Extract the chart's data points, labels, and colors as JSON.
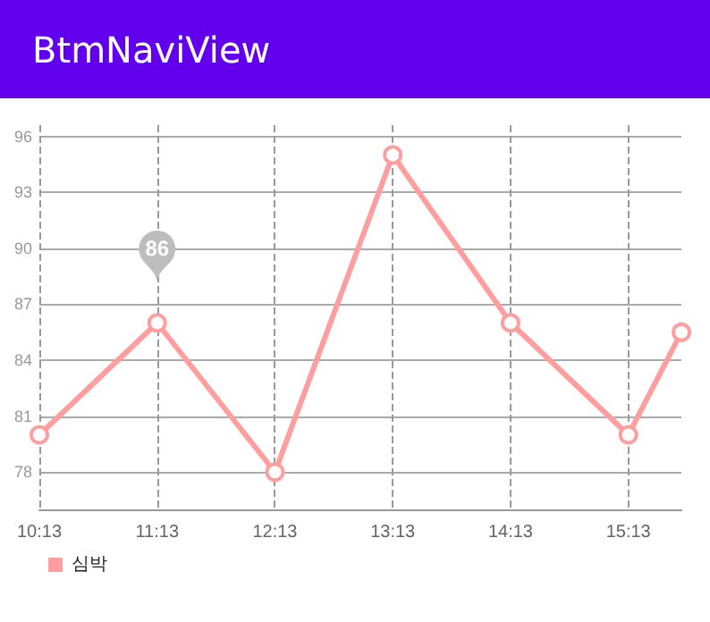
{
  "chart_data": {
    "type": "line",
    "title": "BtmNaviView",
    "x": [
      10.2167,
      11.2167,
      12.2167,
      13.2167,
      14.2167,
      15.2167,
      15.667
    ],
    "series": [
      {
        "name": "심박",
        "color": "#ff9e9e",
        "values": [
          80,
          86,
          78,
          95,
          86,
          80,
          85.5
        ]
      }
    ],
    "xlim": [
      10.2167,
      15.667
    ],
    "xticks": [
      {
        "value": 10.2167,
        "label": "10:13"
      },
      {
        "value": 11.2167,
        "label": "11:13"
      },
      {
        "value": 12.2167,
        "label": "12:13"
      },
      {
        "value": 13.2167,
        "label": "13:13"
      },
      {
        "value": 14.2167,
        "label": "14:13"
      },
      {
        "value": 15.2167,
        "label": "15:13"
      }
    ],
    "ylim": [
      76,
      96.6
    ],
    "yticks": [
      78,
      81,
      84,
      87,
      90,
      93,
      96
    ],
    "grid": true,
    "legend": "bottom left",
    "marker": "circle",
    "line_style": "solid",
    "annotations": [
      {
        "text": "86",
        "x": 11.2167,
        "y": 86
      }
    ]
  }
}
